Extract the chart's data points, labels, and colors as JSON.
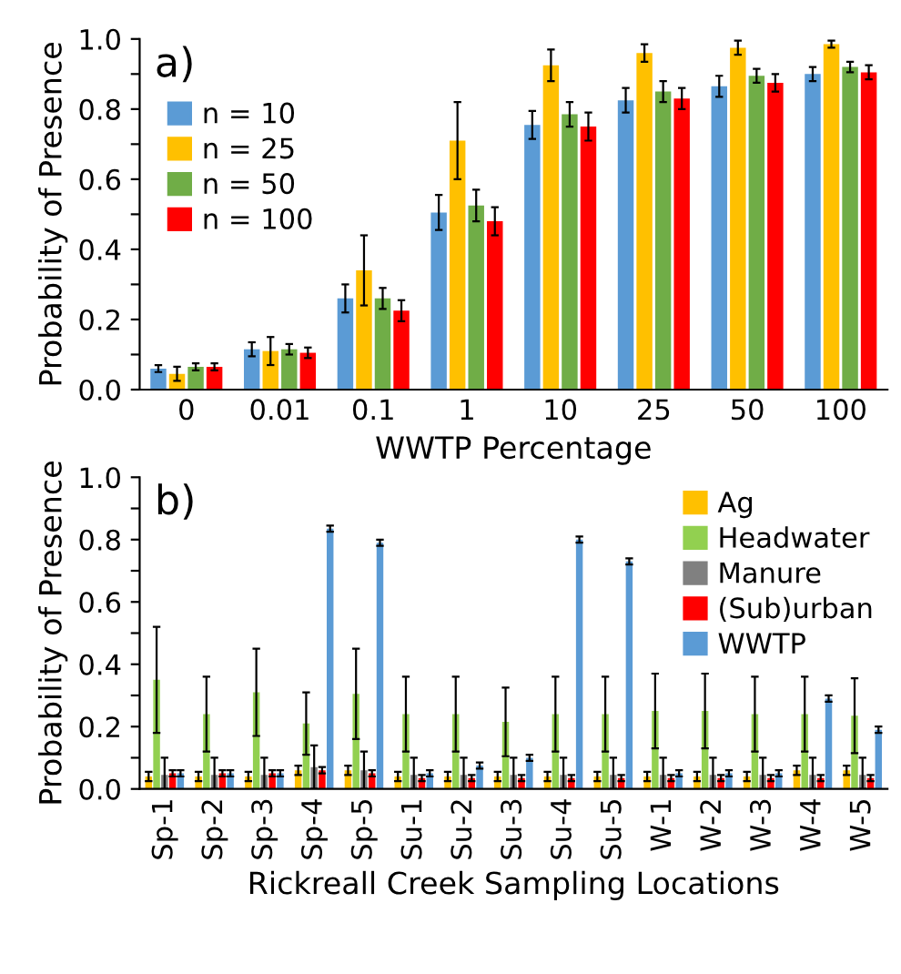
{
  "chart_data": [
    {
      "type": "bar",
      "xlabel": "WWTP Percentage",
      "ylabel": "Probability of Presence",
      "annotations": [
        "a)"
      ],
      "categories": [
        "0",
        "0.01",
        "0.1",
        "1",
        "10",
        "25",
        "50",
        "100"
      ],
      "series": [
        {
          "name": "n = 10",
          "color": "#5b9bd5",
          "values": [
            0.06,
            0.115,
            0.26,
            0.505,
            0.755,
            0.825,
            0.865,
            0.9
          ],
          "errors": [
            0.01,
            0.02,
            0.04,
            0.05,
            0.04,
            0.035,
            0.03,
            0.02
          ]
        },
        {
          "name": "n = 25",
          "color": "#ffc000",
          "values": [
            0.045,
            0.11,
            0.34,
            0.71,
            0.925,
            0.96,
            0.975,
            0.985
          ],
          "errors": [
            0.02,
            0.04,
            0.1,
            0.11,
            0.045,
            0.025,
            0.02,
            0.01
          ]
        },
        {
          "name": "n = 50",
          "color": "#70ad47",
          "values": [
            0.065,
            0.115,
            0.26,
            0.525,
            0.785,
            0.85,
            0.895,
            0.92
          ],
          "errors": [
            0.01,
            0.015,
            0.03,
            0.045,
            0.035,
            0.03,
            0.02,
            0.015
          ]
        },
        {
          "name": "n = 100",
          "color": "#ff0000",
          "values": [
            0.065,
            0.105,
            0.225,
            0.48,
            0.75,
            0.83,
            0.875,
            0.905
          ],
          "errors": [
            0.01,
            0.015,
            0.03,
            0.04,
            0.04,
            0.03,
            0.025,
            0.02
          ]
        }
      ],
      "ylim": [
        0,
        1.0
      ],
      "yticks": [
        {
          "value": 0,
          "label": "0.0"
        },
        {
          "value": 0.1,
          "label": null
        },
        0.2,
        {
          "value": 0.3,
          "label": null
        },
        0.4,
        {
          "value": 0.5,
          "label": null
        },
        0.6,
        {
          "value": 0.7,
          "label": null
        },
        0.8,
        {
          "value": 0.9,
          "label": null
        },
        {
          "value": 1.0,
          "label": "1.0"
        }
      ],
      "legend": "top left"
    },
    {
      "type": "bar",
      "xlabel": "Rickreall Creek Sampling Locations",
      "ylabel": "Probability of Presence",
      "annotations": [
        "b)"
      ],
      "categories": [
        "Sp-1",
        "Sp-2",
        "Sp-3",
        "Sp-4",
        "Sp-5",
        "Su-1",
        "Su-2",
        "Su-3",
        "Su-4",
        "Su-5",
        "W-1",
        "W-2",
        "W-3",
        "W-4",
        "W-5"
      ],
      "series": [
        {
          "name": "Ag",
          "color": "#ffc000",
          "values": [
            0.04,
            0.04,
            0.04,
            0.06,
            0.06,
            0.04,
            0.04,
            0.04,
            0.04,
            0.04,
            0.04,
            0.04,
            0.04,
            0.06,
            0.06
          ],
          "errors": [
            0.015,
            0.015,
            0.015,
            0.015,
            0.015,
            0.015,
            0.015,
            0.015,
            0.015,
            0.015,
            0.015,
            0.015,
            0.015,
            0.015,
            0.015
          ]
        },
        {
          "name": "Headwater",
          "color": "#92d050",
          "values": [
            0.35,
            0.24,
            0.31,
            0.21,
            0.305,
            0.24,
            0.24,
            0.215,
            0.24,
            0.24,
            0.25,
            0.25,
            0.24,
            0.24,
            0.235
          ],
          "errors": [
            0.17,
            0.12,
            0.14,
            0.1,
            0.145,
            0.12,
            0.12,
            0.11,
            0.12,
            0.12,
            0.12,
            0.12,
            0.12,
            0.12,
            0.12
          ]
        },
        {
          "name": "Manure",
          "color": "#808080",
          "values": [
            0.045,
            0.045,
            0.045,
            0.07,
            0.06,
            0.045,
            0.045,
            0.045,
            0.045,
            0.045,
            0.045,
            0.045,
            0.045,
            0.045,
            0.045
          ],
          "errors": [
            [
              0,
              0.1
            ],
            [
              0,
              0.1
            ],
            [
              0,
              0.1
            ],
            [
              0,
              0.14
            ],
            [
              0,
              0.12
            ],
            [
              0,
              0.1
            ],
            [
              0,
              0.1
            ],
            [
              0,
              0.1
            ],
            [
              0,
              0.1
            ],
            [
              0,
              0.1
            ],
            [
              0,
              0.1
            ],
            [
              0,
              0.1
            ],
            [
              0,
              0.1
            ],
            [
              0,
              0.1
            ],
            [
              0,
              0.1
            ]
          ]
        },
        {
          "name": "(Sub)urban",
          "color": "#ff0000",
          "values": [
            0.05,
            0.05,
            0.05,
            0.06,
            0.05,
            0.035,
            0.035,
            0.035,
            0.035,
            0.035,
            0.035,
            0.035,
            0.035,
            0.035,
            0.035
          ],
          "errors": [
            0.01,
            0.01,
            0.01,
            0.01,
            0.01,
            0.01,
            0.01,
            0.01,
            0.01,
            0.01,
            0.01,
            0.01,
            0.01,
            0.01,
            0.01
          ]
        },
        {
          "name": "WWTP",
          "color": "#5b9bd5",
          "values": [
            0.05,
            0.05,
            0.05,
            0.835,
            0.79,
            0.05,
            0.075,
            0.1,
            0.8,
            0.73,
            0.05,
            0.05,
            0.05,
            0.29,
            0.19
          ],
          "errors": [
            0.01,
            0.01,
            0.01,
            0.01,
            0.01,
            0.01,
            0.01,
            0.01,
            0.01,
            0.01,
            0.01,
            0.01,
            0.01,
            0.01,
            0.01
          ]
        }
      ],
      "ylim": [
        0,
        1.0
      ],
      "yticks": [
        {
          "value": 0,
          "label": "0.0"
        },
        {
          "value": 0.1,
          "label": null
        },
        0.2,
        {
          "value": 0.3,
          "label": null
        },
        0.4,
        {
          "value": 0.5,
          "label": null
        },
        0.6,
        {
          "value": 0.7,
          "label": null
        },
        0.8,
        {
          "value": 0.9,
          "label": null
        },
        {
          "value": 1.0,
          "label": "1.0"
        }
      ],
      "legend": "top right"
    }
  ]
}
